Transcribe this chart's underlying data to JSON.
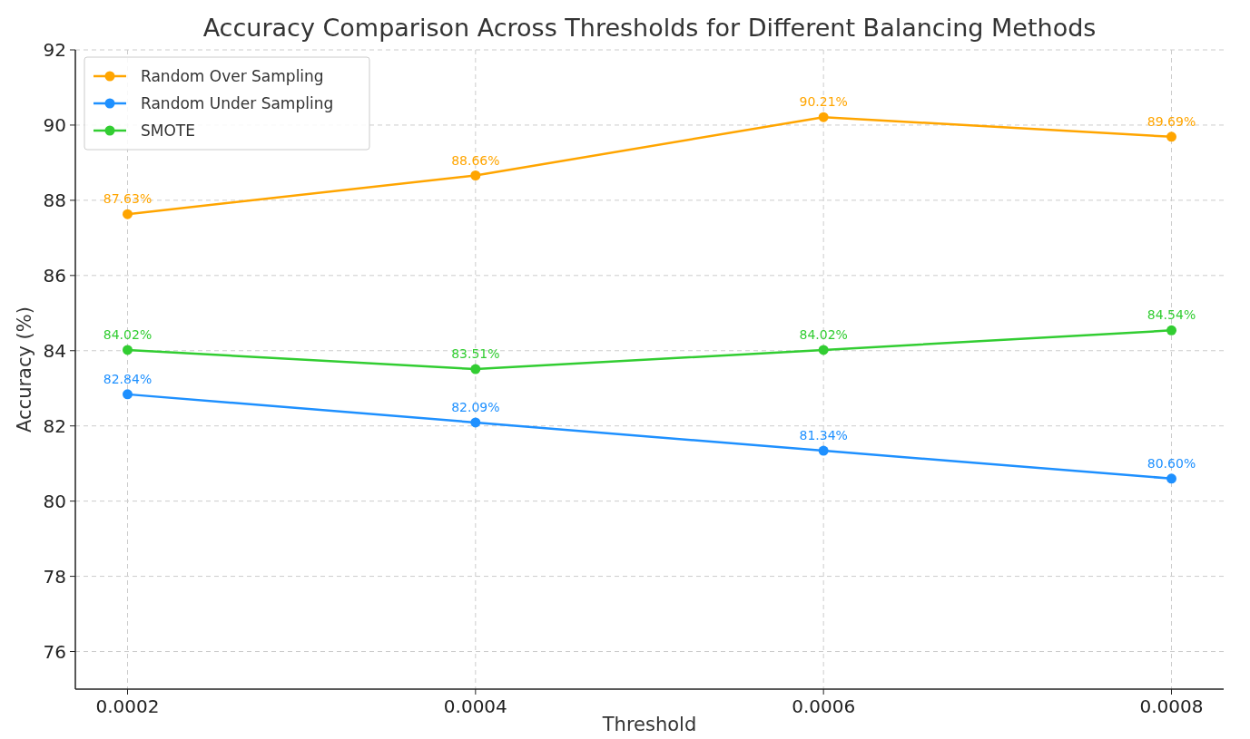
{
  "chart_data": {
    "type": "line",
    "title": "Accuracy Comparison Across Thresholds for Different Balancing Methods",
    "xlabel": "Threshold",
    "ylabel": "Accuracy (%)",
    "x": [
      0.0002,
      0.0004,
      0.0006,
      0.0008
    ],
    "series": [
      {
        "name": "Random Over Sampling",
        "color": "#ffa500",
        "values": [
          87.63,
          88.66,
          90.21,
          89.69
        ],
        "value_labels": [
          "87.63%",
          "88.66%",
          "90.21%",
          "89.69%"
        ]
      },
      {
        "name": "Random Under Sampling",
        "color": "#1e90ff",
        "values": [
          82.84,
          82.09,
          81.34,
          80.6
        ],
        "value_labels": [
          "82.84%",
          "82.09%",
          "81.34%",
          "80.60%"
        ]
      },
      {
        "name": "SMOTE",
        "color": "#32cd32",
        "values": [
          84.02,
          83.51,
          84.02,
          84.54
        ],
        "value_labels": [
          "84.02%",
          "83.51%",
          "84.02%",
          "84.54%"
        ]
      }
    ],
    "xlim": [
      0.00017,
      0.00083
    ],
    "xticks": [
      0.0002,
      0.0004,
      0.0006,
      0.0008
    ],
    "ylim": [
      75,
      92
    ],
    "yticks": [
      76,
      78,
      80,
      82,
      84,
      86,
      88,
      90,
      92
    ],
    "grid": true,
    "legend": "top left",
    "marker": "circle",
    "line_style": "solid"
  }
}
